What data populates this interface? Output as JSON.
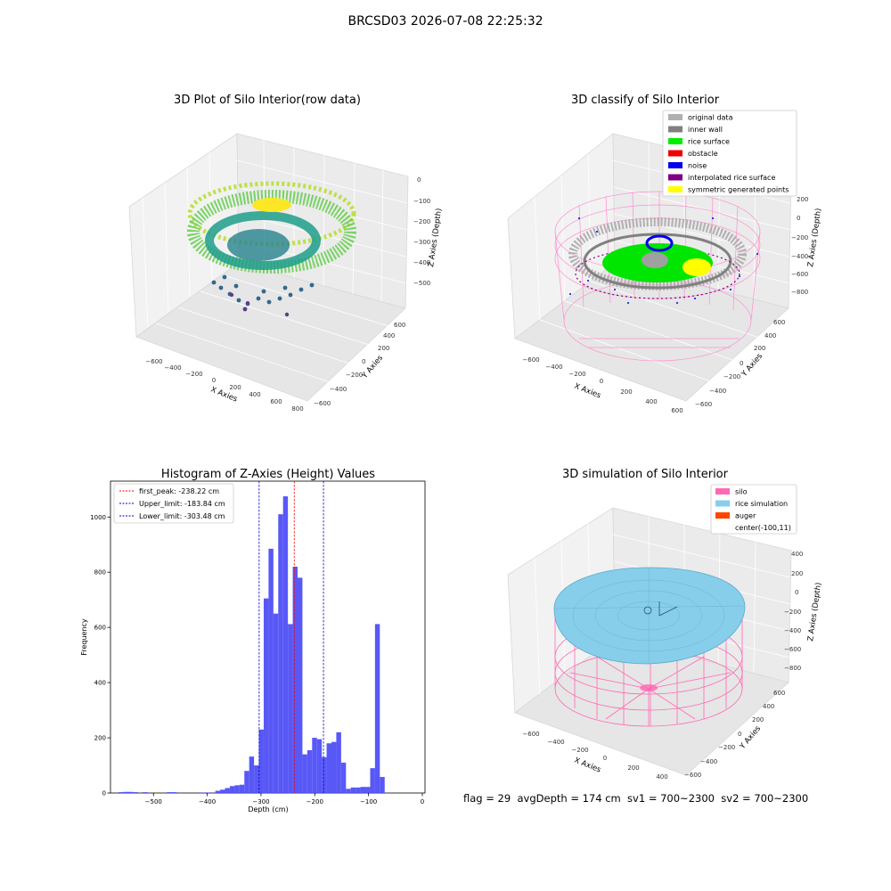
{
  "figure": {
    "suptitle": "BRCSD03 2026-07-08 22:25:32"
  },
  "colors": {
    "histogram_bar": "#4f4ff7",
    "first_peak_line": "#ff0000",
    "limit_lines": "#0000cc",
    "silo": "#ff69b4",
    "rice_simulation": "#87ceeb",
    "auger": "#ff4500"
  },
  "panels": {
    "raw": {
      "title": "3D Plot of Silo Interior(row data)",
      "xlabel": "X Axies",
      "ylabel": "Y Axies",
      "zlabel": "Z Axies (Depth)",
      "xticks": [
        "−600",
        "−400",
        "−200",
        "0",
        "200",
        "400",
        "600",
        "800"
      ],
      "yticks": [
        "−600",
        "−400",
        "−200",
        "0",
        "200",
        "400",
        "600"
      ],
      "zticks": [
        "0",
        "−100",
        "−200",
        "−300",
        "−400",
        "−500"
      ]
    },
    "classify": {
      "title": "3D classify of Silo Interior",
      "xlabel": "X Axies",
      "ylabel": "Y Axies",
      "zlabel": "Z Axies (Depth)",
      "xticks": [
        "−600",
        "−400",
        "−200",
        "0",
        "200",
        "400",
        "600"
      ],
      "yticks": [
        "−600",
        "−400",
        "−200",
        "0",
        "200",
        "400",
        "600"
      ],
      "zticks": [
        "200",
        "0",
        "−200",
        "−400",
        "−600",
        "−800"
      ],
      "legend": [
        {
          "label": "original data",
          "color": "#b0b0b0"
        },
        {
          "label": "inner wall",
          "color": "#808080"
        },
        {
          "label": "rice surface",
          "color": "#00ee00"
        },
        {
          "label": "obstacle",
          "color": "#ee0000"
        },
        {
          "label": "noise",
          "color": "#0000ee"
        },
        {
          "label": "interpolated rice surface",
          "color": "#800080"
        },
        {
          "label": "symmetric generated points",
          "color": "#ffff00"
        }
      ]
    },
    "simulation": {
      "title": "3D simulation of Silo Interior",
      "xlabel": "X Axies",
      "ylabel": "Y Axies",
      "zlabel": "Z Axies (Depth)",
      "xticks": [
        "−600",
        "−400",
        "−200",
        "0",
        "200",
        "400"
      ],
      "yticks": [
        "−600",
        "−400",
        "−200",
        "0",
        "200",
        "400",
        "600"
      ],
      "zticks": [
        "400",
        "200",
        "0",
        "−200",
        "−400",
        "−600",
        "−800"
      ],
      "legend": [
        {
          "label": "silo",
          "color": "#ff69b4"
        },
        {
          "label": "rice simulation",
          "color": "#87ceeb"
        },
        {
          "label": "auger",
          "color": "#ff4500"
        },
        {
          "label": "center(-100,11)",
          "color": ""
        }
      ]
    }
  },
  "footer_text": "flag = 29  avgDepth = 174 cm  sv1 = 700~2300  sv2 = 700~2300",
  "chart_data": {
    "type": "bar",
    "title": "Histogram of Z-Axies (Height) Values",
    "xlabel": "Depth (cm)",
    "ylabel": "Frequency",
    "xlim": [
      -580,
      5
    ],
    "ylim": [
      0,
      1130
    ],
    "xticks": [
      -500,
      -400,
      -300,
      -200,
      -100,
      0
    ],
    "yticks": [
      0,
      200,
      400,
      600,
      800,
      1000
    ],
    "bin_width": 9,
    "bin_edges_start": [
      -565,
      -556,
      -547,
      -538,
      -520,
      -475,
      -466,
      -412,
      -403,
      -385,
      -376,
      -367,
      -358,
      -349,
      -340,
      -331,
      -322,
      -313,
      -304,
      -295,
      -286,
      -277,
      -268,
      -259,
      -250,
      -241,
      -232,
      -223,
      -214,
      -205,
      -196,
      -187,
      -178,
      -169,
      -160,
      -151,
      -142,
      -133,
      -124,
      -115,
      -106,
      -97,
      -88,
      -79,
      -70,
      -61,
      -52,
      -43,
      -34
    ],
    "frequencies": [
      3,
      4,
      4,
      3,
      3,
      3,
      3,
      2,
      2,
      8,
      12,
      18,
      25,
      28,
      30,
      80,
      132,
      100,
      230,
      705,
      885,
      650,
      1010,
      1075,
      612,
      820,
      780,
      140,
      155,
      200,
      195,
      130,
      180,
      185,
      220,
      110,
      15,
      20,
      20,
      22,
      22,
      90,
      612,
      58,
      0,
      0,
      0,
      0,
      0
    ],
    "vlines": [
      {
        "label": "first_peak: -238.22 cm",
        "x": -238.22,
        "color": "#ff0000"
      },
      {
        "label": "Upper_limit: -183.84 cm",
        "x": -183.84,
        "color": "#0000cc"
      },
      {
        "label": "Lower_limit: -303.48 cm",
        "x": -303.48,
        "color": "#0000cc"
      }
    ]
  }
}
